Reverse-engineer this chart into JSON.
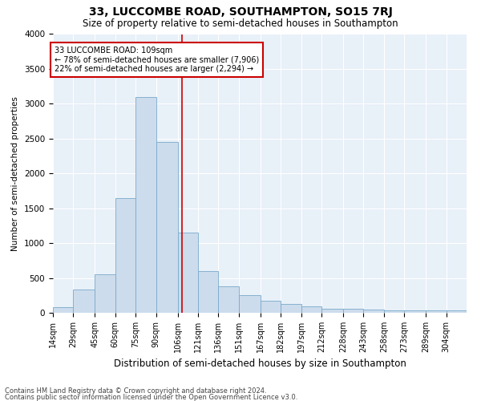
{
  "title": "33, LUCCOMBE ROAD, SOUTHAMPTON, SO15 7RJ",
  "subtitle": "Size of property relative to semi-detached houses in Southampton",
  "xlabel": "Distribution of semi-detached houses by size in Southampton",
  "ylabel": "Number of semi-detached properties",
  "footer_line1": "Contains HM Land Registry data © Crown copyright and database right 2024.",
  "footer_line2": "Contains public sector information licensed under the Open Government Licence v3.0.",
  "annotation_title": "33 LUCCOMBE ROAD: 109sqm",
  "annotation_line1": "← 78% of semi-detached houses are smaller (7,906)",
  "annotation_line2": "22% of semi-detached houses are larger (2,294) →",
  "property_size": 109,
  "bar_color": "#ccdcec",
  "bar_edge_color": "#7aaaca",
  "marker_color": "#cc0000",
  "annotation_box_color": "#cc0000",
  "background_color": "#e8f0f8",
  "bins": [
    14,
    29,
    45,
    60,
    75,
    90,
    106,
    121,
    136,
    151,
    167,
    182,
    197,
    212,
    228,
    243,
    258,
    273,
    289,
    304,
    319
  ],
  "counts": [
    80,
    335,
    550,
    1650,
    3100,
    2450,
    1150,
    600,
    375,
    255,
    170,
    125,
    90,
    60,
    60,
    50,
    30,
    30,
    30,
    30
  ],
  "ylim": [
    0,
    4000
  ],
  "yticks": [
    0,
    500,
    1000,
    1500,
    2000,
    2500,
    3000,
    3500,
    4000
  ],
  "title_fontsize": 10,
  "subtitle_fontsize": 8.5,
  "xlabel_fontsize": 8.5,
  "ylabel_fontsize": 7.5,
  "tick_fontsize": 7,
  "footer_fontsize": 6
}
